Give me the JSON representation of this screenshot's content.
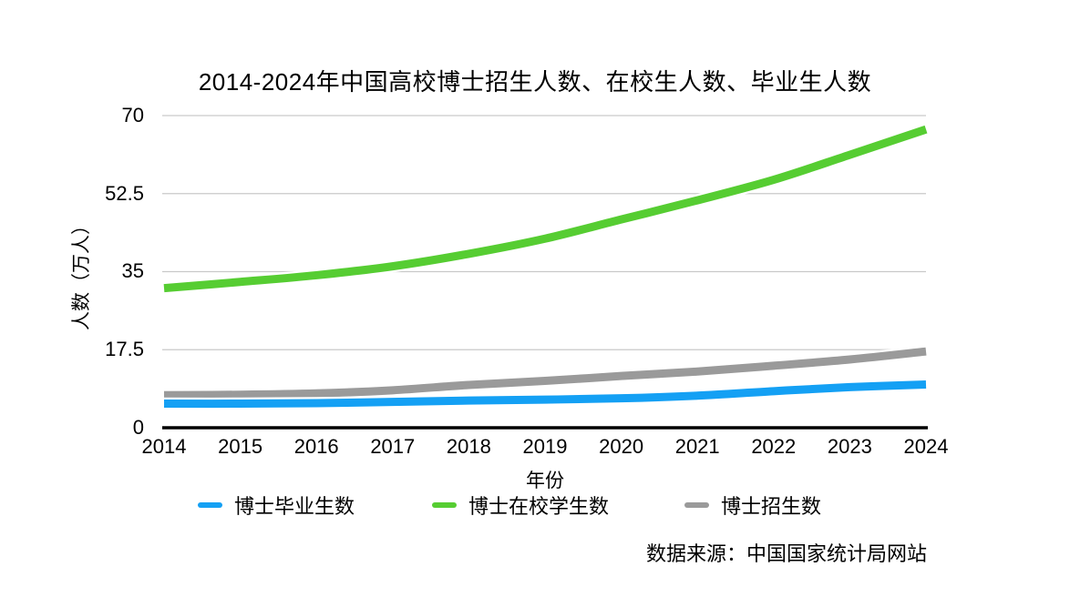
{
  "title": "2014-2024年中国高校博士招生人数、在校生人数、毕业生人数",
  "source_note": "数据来源：中国国家统计局网站",
  "colors": {
    "graduates_blue": "#14A0F4",
    "enrolled_green": "#56CD32",
    "admissions_gray": "#9A9A9A",
    "gridline": "#C9C9C9",
    "axis": "#000000"
  },
  "chart_data": {
    "type": "line",
    "title": "2014-2024年中国高校博士招生人数、在校生人数、毕业生人数",
    "x": [
      2014,
      2015,
      2016,
      2017,
      2018,
      2019,
      2020,
      2021,
      2022,
      2023,
      2024
    ],
    "series": [
      {
        "name": "博士毕业生数",
        "color": "#14A0F4",
        "values": [
          5.4,
          5.4,
          5.5,
          5.8,
          6.1,
          6.3,
          6.6,
          7.2,
          8.2,
          9.1,
          9.7
        ]
      },
      {
        "name": "博士在校学生数",
        "color": "#56CD32",
        "values": [
          31.3,
          32.7,
          34.2,
          36.2,
          39.0,
          42.4,
          46.7,
          51.0,
          55.6,
          61.2,
          66.9
        ]
      },
      {
        "name": "博士招生数",
        "color": "#9A9A9A",
        "values": [
          7.3,
          7.4,
          7.7,
          8.4,
          9.6,
          10.5,
          11.6,
          12.6,
          13.9,
          15.3,
          17.1
        ]
      }
    ],
    "xlabel": "年份",
    "ylabel": "人数（万人）",
    "ylim": [
      0,
      70
    ],
    "y_ticks": [
      0,
      17.5,
      35,
      52.5,
      70
    ],
    "grid": true,
    "legend_position": "bottom",
    "unit": "万人"
  }
}
